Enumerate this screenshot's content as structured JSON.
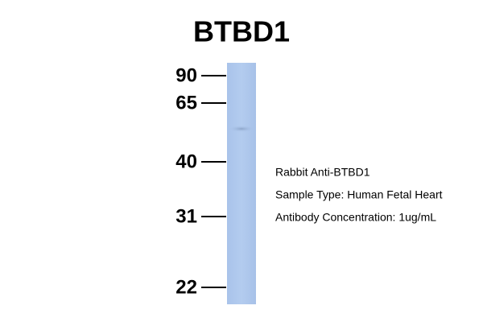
{
  "title": "BTBD1",
  "markers": [
    90,
    65,
    40,
    31,
    22
  ],
  "annotations": [
    "Rabbit Anti-BTBD1",
    "Sample Type: Human Fetal Heart",
    "Antibody Concentration: 1ug/mL"
  ]
}
